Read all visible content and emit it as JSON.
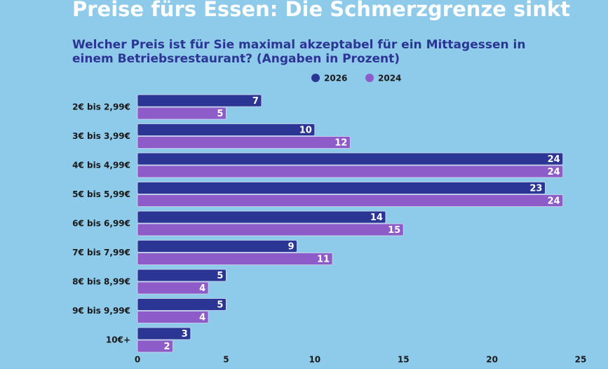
{
  "chart_data": {
    "type": "bar",
    "orientation": "horizontal",
    "title": "Preise fürs Essen: Die Schmerzgrenze sinkt",
    "subtitle": "Welcher Preis ist für Sie maximal akzeptabel für ein Mittagessen in einem Betriebsrestaurant? (Angaben in Prozent)",
    "categories": [
      "2€ bis 2,99€",
      "3€ bis 3,99€",
      "4€ bis 4,99€",
      "5€ bis 5,99€",
      "6€ bis 6,99€",
      "7€ bis 7,99€",
      "8€ bis 8,99€",
      "9€ bis 9,99€",
      "10€+"
    ],
    "series": [
      {
        "name": "2026",
        "color": "#2b3593",
        "values": [
          7,
          10,
          24,
          23,
          14,
          9,
          5,
          5,
          3
        ]
      },
      {
        "name": "2024",
        "color": "#8e5cc9",
        "values": [
          5,
          12,
          24,
          24,
          15,
          11,
          4,
          4,
          2
        ]
      }
    ],
    "xlim": [
      0,
      25
    ],
    "xticks": [
      0,
      5,
      10,
      15,
      20,
      25
    ],
    "grid": false
  }
}
